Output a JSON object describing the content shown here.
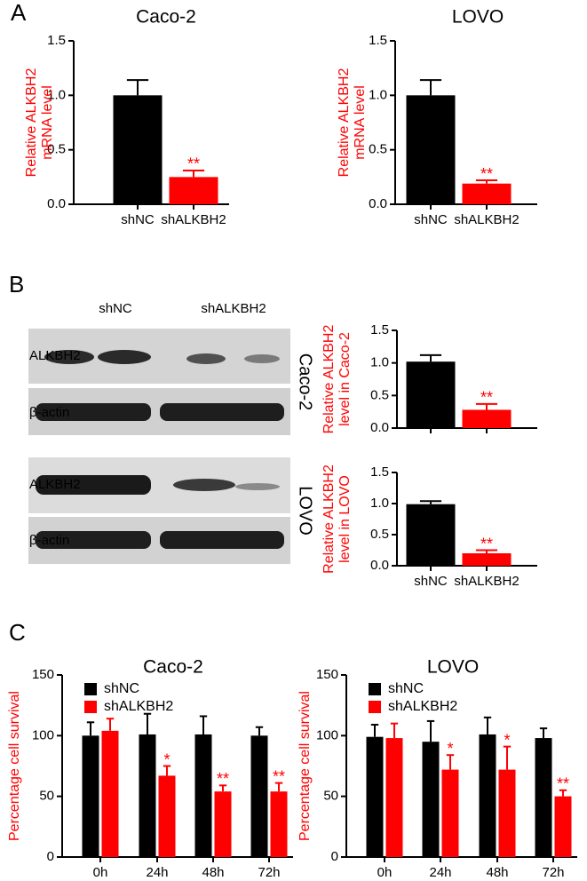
{
  "panel_labels": [
    "A",
    "B",
    "C"
  ],
  "blot": {
    "lanes": [
      "shNC",
      "shALKBH2"
    ],
    "rows": [
      "ALKBH2",
      "β-actin",
      "ALKBH2",
      "β-actin"
    ],
    "cell_lines": [
      "Caco-2",
      "LOVO"
    ]
  },
  "chart_data": [
    {
      "type": "bar",
      "title": "Caco-2",
      "ylabel": [
        "Relative ALKBH2",
        "mRNA level"
      ],
      "categories": [
        "shNC",
        "shALKBH2"
      ],
      "values": [
        1.0,
        0.25
      ],
      "errors": [
        0.14,
        0.06
      ],
      "colors": [
        "#000000",
        "#ff0000"
      ],
      "annotations": [
        null,
        "**"
      ],
      "ylim": [
        0,
        1.5
      ],
      "yticks": [
        {
          "value": 0,
          "label": "0.0"
        },
        {
          "value": 0.5,
          "label": "0.5"
        },
        {
          "value": 1,
          "label": "1.0"
        },
        {
          "value": 1.5,
          "label": "1.5"
        }
      ]
    },
    {
      "type": "bar",
      "title": "LOVO",
      "ylabel": [
        "Relative ALKBH2",
        "mRNA level"
      ],
      "categories": [
        "shNC",
        "shALKBH2"
      ],
      "values": [
        1.0,
        0.19
      ],
      "errors": [
        0.14,
        0.03
      ],
      "colors": [
        "#000000",
        "#ff0000"
      ],
      "annotations": [
        null,
        "**"
      ],
      "ylim": [
        0,
        1.5
      ],
      "yticks": [
        {
          "value": 0,
          "label": "0.0"
        },
        {
          "value": 0.5,
          "label": "0.5"
        },
        {
          "value": 1,
          "label": "1.0"
        },
        {
          "value": 1.5,
          "label": "1.5"
        }
      ]
    },
    {
      "type": "bar",
      "ylabel": [
        "Relative ALKBH2",
        "level in Caco-2"
      ],
      "categories": [
        null,
        null
      ],
      "values": [
        1.02,
        0.28
      ],
      "errors": [
        0.1,
        0.09
      ],
      "colors": [
        "#000000",
        "#ff0000"
      ],
      "annotations": [
        null,
        "**"
      ],
      "ylim": [
        0,
        1.5
      ],
      "yticks": [
        {
          "value": 0,
          "label": "0.0"
        },
        {
          "value": 0.5,
          "label": "0.5"
        },
        {
          "value": 1,
          "label": "1.0"
        },
        {
          "value": 1.5,
          "label": "1.5"
        }
      ]
    },
    {
      "type": "bar",
      "ylabel": [
        "Relative ALKBH2",
        "level in LOVO"
      ],
      "categories": [
        "shNC",
        "shALKBH2"
      ],
      "values": [
        0.99,
        0.2
      ],
      "errors": [
        0.05,
        0.05
      ],
      "colors": [
        "#000000",
        "#ff0000"
      ],
      "annotations": [
        null,
        "**"
      ],
      "ylim": [
        0,
        1.5
      ],
      "yticks": [
        {
          "value": 0,
          "label": "0.0"
        },
        {
          "value": 0.5,
          "label": "0.5"
        },
        {
          "value": 1,
          "label": "1.0"
        },
        {
          "value": 1.5,
          "label": "1.5"
        }
      ]
    },
    {
      "type": "bar",
      "title": "Caco-2",
      "ylabel": [
        "Percentage cell survival"
      ],
      "categories": [
        "0h",
        "24h",
        "48h",
        "72h"
      ],
      "series": [
        {
          "name": "shNC",
          "color": "#000000",
          "values": [
            100,
            101,
            101,
            100
          ],
          "errors": [
            11,
            17,
            15,
            7
          ],
          "annotations": [
            null,
            null,
            null,
            null
          ]
        },
        {
          "name": "shALKBH2",
          "color": "#ff0000",
          "values": [
            104,
            67,
            54,
            54
          ],
          "errors": [
            10,
            8,
            5,
            7
          ],
          "annotations": [
            null,
            "*",
            "**",
            "**"
          ]
        }
      ],
      "ylim": [
        0,
        150
      ],
      "yticks": [
        0,
        50,
        100,
        150
      ]
    },
    {
      "type": "bar",
      "title": "LOVO",
      "ylabel": [
        "Percentage cell survival"
      ],
      "categories": [
        "0h",
        "24h",
        "48h",
        "72h"
      ],
      "series": [
        {
          "name": "shNC",
          "color": "#000000",
          "values": [
            99,
            95,
            101,
            98
          ],
          "errors": [
            10,
            17,
            14,
            8
          ],
          "annotations": [
            null,
            null,
            null,
            null
          ]
        },
        {
          "name": "shALKBH2",
          "color": "#ff0000",
          "values": [
            98,
            72,
            72,
            50
          ],
          "errors": [
            12,
            12,
            19,
            5
          ],
          "annotations": [
            null,
            "*",
            "*",
            "**"
          ]
        }
      ],
      "ylim": [
        0,
        150
      ],
      "yticks": [
        0,
        50,
        100,
        150
      ]
    }
  ]
}
